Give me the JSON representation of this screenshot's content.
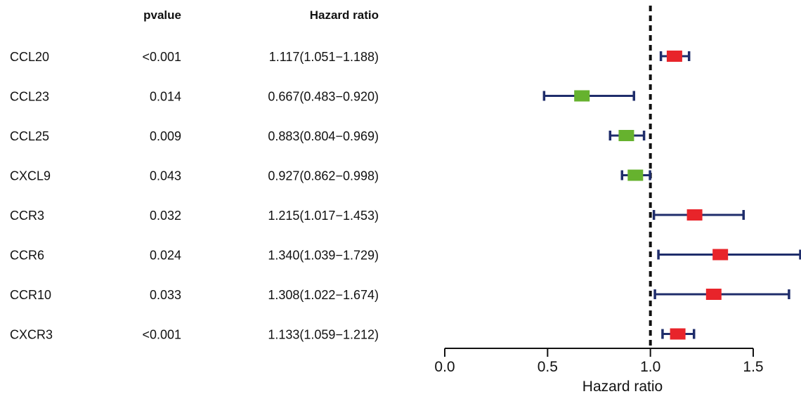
{
  "chart_data": {
    "type": "forest",
    "columns": {
      "pvalue": "pvalue",
      "hazard_ratio": "Hazard ratio"
    },
    "rows": [
      {
        "label": "CCL20",
        "pvalue": "<0.001",
        "hr_text": "1.117(1.051−1.188)",
        "hr": 1.117,
        "lower": 1.051,
        "upper": 1.188
      },
      {
        "label": "CCL23",
        "pvalue": "0.014",
        "hr_text": "0.667(0.483−0.920)",
        "hr": 0.667,
        "lower": 0.483,
        "upper": 0.92
      },
      {
        "label": "CCL25",
        "pvalue": "0.009",
        "hr_text": "0.883(0.804−0.969)",
        "hr": 0.883,
        "lower": 0.804,
        "upper": 0.969
      },
      {
        "label": "CXCL9",
        "pvalue": "0.043",
        "hr_text": "0.927(0.862−0.998)",
        "hr": 0.927,
        "lower": 0.862,
        "upper": 0.998
      },
      {
        "label": "CCR3",
        "pvalue": "0.032",
        "hr_text": "1.215(1.017−1.453)",
        "hr": 1.215,
        "lower": 1.017,
        "upper": 1.453
      },
      {
        "label": "CCR6",
        "pvalue": "0.024",
        "hr_text": "1.340(1.039−1.729)",
        "hr": 1.34,
        "lower": 1.039,
        "upper": 1.729
      },
      {
        "label": "CCR10",
        "pvalue": "0.033",
        "hr_text": "1.308(1.022−1.674)",
        "hr": 1.308,
        "lower": 1.022,
        "upper": 1.674
      },
      {
        "label": "CXCR3",
        "pvalue": "<0.001",
        "hr_text": "1.133(1.059−1.212)",
        "hr": 1.133,
        "lower": 1.059,
        "upper": 1.212
      }
    ],
    "xlabel": "Hazard ratio",
    "xticks": [
      {
        "value": 0.0,
        "label": "0.0"
      },
      {
        "value": 0.5,
        "label": "0.5"
      },
      {
        "value": 1.0,
        "label": "1.0"
      },
      {
        "value": 1.5,
        "label": "1.5"
      }
    ],
    "xlim": [
      0,
      1.5
    ],
    "reference_line": 1.0,
    "colors": {
      "risk": "#e8242a",
      "protective": "#66b22e",
      "ci": "#1f2d6b",
      "reference": "#111111"
    }
  }
}
